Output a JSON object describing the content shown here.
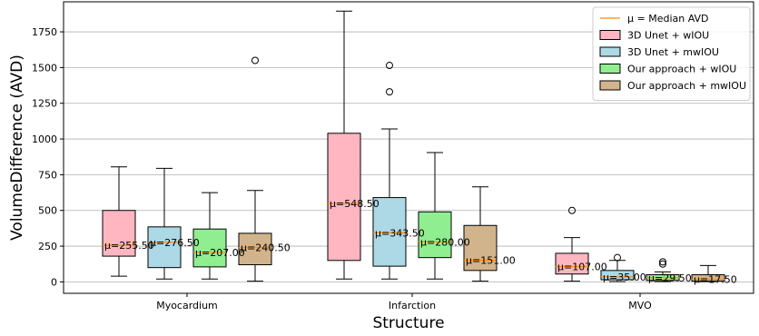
{
  "chart_data": {
    "type": "box",
    "xlabel": "Structure",
    "ylabel": "VolumeDifference (AVD)",
    "ylim": [
      -80,
      1960
    ],
    "yticks": [
      0,
      250,
      500,
      750,
      1000,
      1250,
      1500,
      1750
    ],
    "grid": "horizontal",
    "legend_position": "top-right",
    "categories": [
      "Myocardium",
      "Infarction",
      "MVO"
    ],
    "median_legend_label": "μ = Median AVD",
    "median_prefix": "μ=",
    "series": [
      {
        "name": "3D Unet + wIOU",
        "color": "#ffb6c1",
        "boxes": [
          {
            "whislo": 40,
            "q1": 180,
            "med": 255.5,
            "q3": 500,
            "whishi": 805,
            "fliers": [],
            "label": "255.50"
          },
          {
            "whislo": 20,
            "q1": 150,
            "med": 548.5,
            "q3": 1040,
            "whishi": 1895,
            "fliers": [],
            "label": "548.50"
          },
          {
            "whislo": 5,
            "q1": 55,
            "med": 107.0,
            "q3": 200,
            "whishi": 310,
            "fliers": [
              500
            ],
            "label": "107.00"
          }
        ]
      },
      {
        "name": "3D Unet + mwIOU",
        "color": "#add8e6",
        "boxes": [
          {
            "whislo": 20,
            "q1": 100,
            "med": 276.5,
            "q3": 385,
            "whishi": 795,
            "fliers": [],
            "label": "276.50"
          },
          {
            "whislo": 20,
            "q1": 110,
            "med": 343.5,
            "q3": 590,
            "whishi": 1070,
            "fliers": [
              1330,
              1515
            ],
            "label": "343.50"
          },
          {
            "whislo": 2,
            "q1": 15,
            "med": 35.0,
            "q3": 80,
            "whishi": 150,
            "fliers": [
              170
            ],
            "label": "35.00"
          }
        ]
      },
      {
        "name": "Our approach + wIOU",
        "color": "#90ee90",
        "boxes": [
          {
            "whislo": 20,
            "q1": 105,
            "med": 207.0,
            "q3": 370,
            "whishi": 625,
            "fliers": [],
            "label": "207.00"
          },
          {
            "whislo": 20,
            "q1": 170,
            "med": 280.0,
            "q3": 490,
            "whishi": 905,
            "fliers": [],
            "label": "280.00"
          },
          {
            "whislo": 2,
            "q1": 10,
            "med": 29.5,
            "q3": 50,
            "whishi": 70,
            "fliers": [
              125,
              140
            ],
            "label": "29.50"
          }
        ]
      },
      {
        "name": "Our approach + mwIOU",
        "color": "#d2b48c",
        "boxes": [
          {
            "whislo": 5,
            "q1": 120,
            "med": 240.5,
            "q3": 340,
            "whishi": 640,
            "fliers": [
              1550
            ],
            "label": "240.50"
          },
          {
            "whislo": 5,
            "q1": 80,
            "med": 151.0,
            "q3": 395,
            "whishi": 665,
            "fliers": [],
            "label": "151.00"
          },
          {
            "whislo": 2,
            "q1": 5,
            "med": 17.5,
            "q3": 50,
            "whishi": 115,
            "fliers": [],
            "label": "17.50"
          }
        ]
      }
    ]
  },
  "colors": {
    "median": "#ff8c00",
    "grid": "#b0b0b0",
    "axis": "#000000",
    "box_edge": "#000000"
  }
}
